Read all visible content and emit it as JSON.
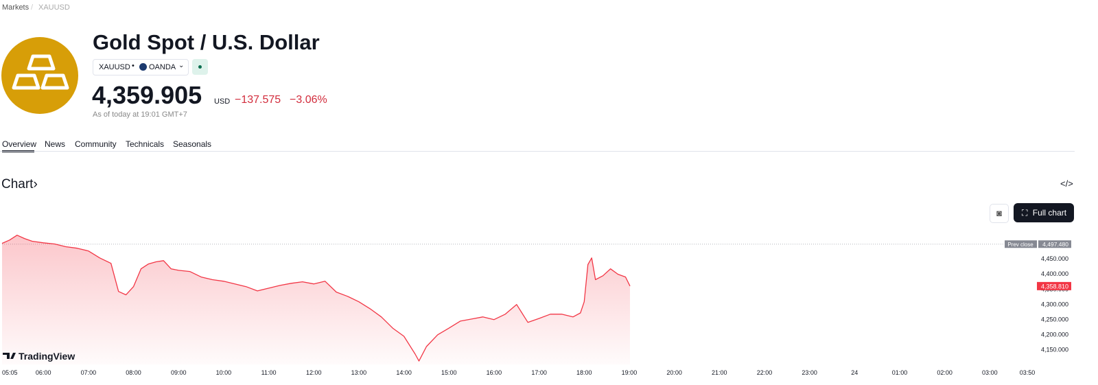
{
  "breadcrumb": [
    "Markets",
    "XAUUSD"
  ],
  "header": {
    "title": "Gold Spot / U.S. Dollar",
    "symbol": "XAUUSD",
    "exchange": "OANDA",
    "price": "4,359.905",
    "currency": "USD",
    "change": "−137.575",
    "change_percent": "−3.06%",
    "as_of": "As of today at 19:01 GMT+7"
  },
  "tabs": [
    "Overview",
    "News",
    "Community",
    "Technicals",
    "Seasonals"
  ],
  "section_title": "Chart",
  "full_chart_button": "Full chart",
  "chart_data": {
    "type": "line",
    "watermark": "TradingView",
    "color": "#f23645",
    "x": [
      305,
      315,
      325,
      335,
      345,
      360,
      375,
      390,
      405,
      420,
      435,
      450,
      460,
      470,
      480,
      490,
      500,
      510,
      520,
      530,
      540,
      555,
      570,
      585,
      600,
      615,
      630,
      645,
      660,
      675,
      690,
      705,
      720,
      735,
      750,
      765,
      780,
      795,
      810,
      825,
      840,
      855,
      860,
      870,
      885,
      900,
      915,
      930,
      945,
      960,
      975,
      990,
      1005,
      1020,
      1035,
      1050,
      1065,
      1075,
      1080,
      1085,
      1090,
      1095,
      1105,
      1115,
      1125,
      1135,
      1141
    ],
    "values": [
      4500,
      4511,
      4527,
      4516,
      4507,
      4502,
      4498,
      4489,
      4484,
      4475,
      4452,
      4434,
      4341,
      4330,
      4357,
      4416,
      4432,
      4439,
      4443,
      4416,
      4411,
      4407,
      4389,
      4380,
      4375,
      4366,
      4357,
      4343,
      4352,
      4361,
      4368,
      4373,
      4366,
      4375,
      4339,
      4325,
      4307,
      4284,
      4257,
      4220,
      4193,
      4134,
      4111,
      4159,
      4198,
      4220,
      4243,
      4250,
      4257,
      4248,
      4266,
      4298,
      4239,
      4252,
      4266,
      4266,
      4257,
      4270,
      4307,
      4430,
      4452,
      4380,
      4393,
      4416,
      4398,
      4389,
      4359
    ],
    "xlim": [
      305,
      1680
    ],
    "xticks": [
      {
        "value": 305,
        "label": "05:05"
      },
      {
        "value": 360,
        "label": "06:00"
      },
      {
        "value": 420,
        "label": "07:00"
      },
      {
        "value": 480,
        "label": "08:00"
      },
      {
        "value": 540,
        "label": "09:00"
      },
      {
        "value": 600,
        "label": "10:00"
      },
      {
        "value": 660,
        "label": "11:00"
      },
      {
        "value": 720,
        "label": "12:00"
      },
      {
        "value": 780,
        "label": "13:00"
      },
      {
        "value": 840,
        "label": "14:00"
      },
      {
        "value": 900,
        "label": "15:00"
      },
      {
        "value": 960,
        "label": "16:00"
      },
      {
        "value": 1020,
        "label": "17:00"
      },
      {
        "value": 1080,
        "label": "18:00"
      },
      {
        "value": 1140,
        "label": "19:00"
      },
      {
        "value": 1200,
        "label": "20:00"
      },
      {
        "value": 1260,
        "label": "21:00"
      },
      {
        "value": 1320,
        "label": "22:00"
      },
      {
        "value": 1380,
        "label": "23:00"
      },
      {
        "value": 1440,
        "label": "24"
      },
      {
        "value": 1500,
        "label": "01:00"
      },
      {
        "value": 1560,
        "label": "02:00"
      },
      {
        "value": 1620,
        "label": "03:00"
      },
      {
        "value": 1670,
        "label": "03:50"
      }
    ],
    "ylim": [
      4100,
      4540
    ],
    "yticks": [
      {
        "value": 4150,
        "label": "4,150.000"
      },
      {
        "value": 4200,
        "label": "4,200.000"
      },
      {
        "value": 4250,
        "label": "4,250.000"
      },
      {
        "value": 4300,
        "label": "4,300.000"
      },
      {
        "value": 4350,
        "label": "4,350.000"
      },
      {
        "value": 4400,
        "label": "4,400.000"
      },
      {
        "value": 4450,
        "label": "4,450.000"
      }
    ],
    "prev_close": {
      "label": "Prev close",
      "value": 4497.48,
      "value_label": "4,497.480"
    },
    "last": {
      "value": 4358.81,
      "value_label": "4,358.810"
    }
  }
}
